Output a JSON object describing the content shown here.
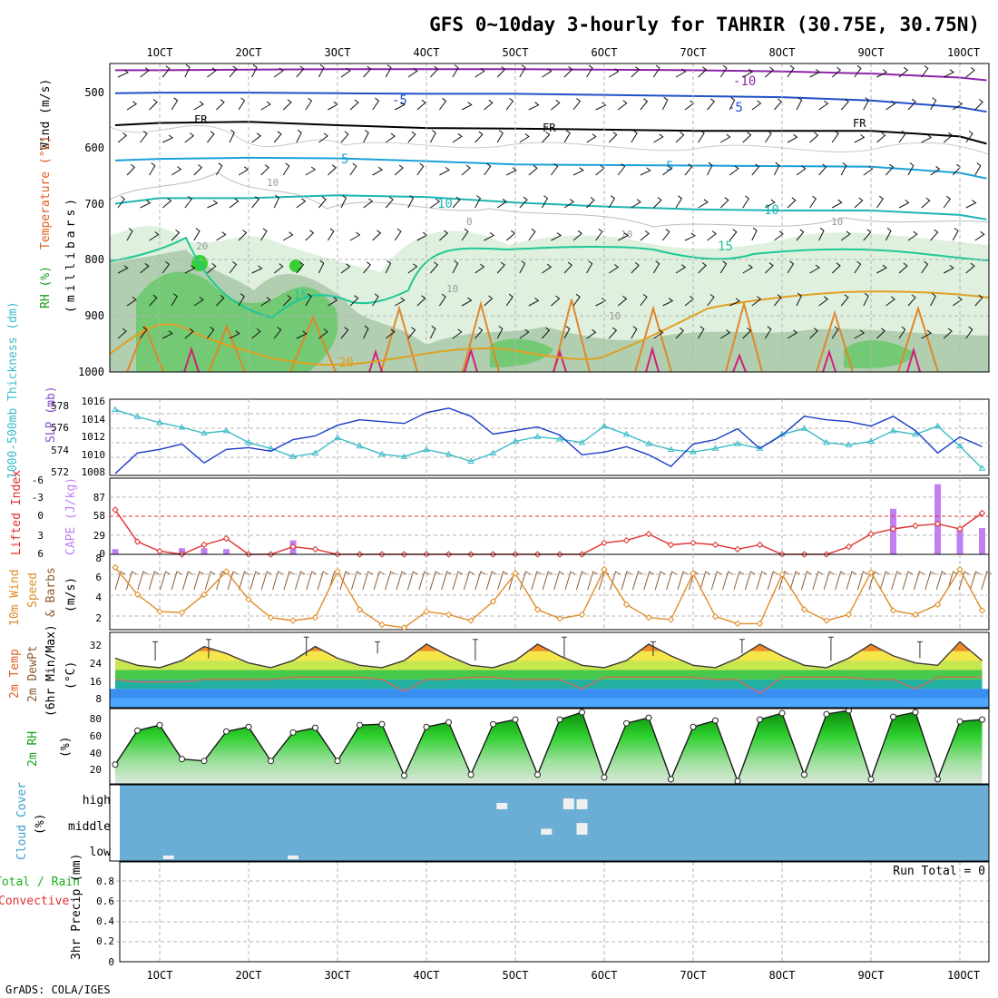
{
  "title": "GFS 0~10day 3-hourly for TAHRIR (30.75E, 30.75N)",
  "footer": "GrADS: COLA/IGES",
  "run_total": "Run Total = 0",
  "time_labels": [
    "1OCT",
    "2OCT",
    "3OCT",
    "4OCT",
    "5OCT",
    "6OCT",
    "7OCT",
    "8OCT",
    "9OCT",
    "10OCT"
  ],
  "colors": {
    "grid": "#b4b4b4",
    "thickness": "#3cbcc8",
    "slp": "#1e3cc8",
    "lifted_index": "#e03030",
    "cape": "#c080f0",
    "wind": "#e08c28",
    "barb": "#8c5a32",
    "temp": "#444444",
    "dewpt": "#d0705a",
    "rh": "#18b018",
    "cloud_bg": "#6aaed6",
    "cloud_patch": "#f0f0f0"
  },
  "panels": {
    "upper": {
      "ylabel": [
        "Wind (m/s)",
        "Temperature (°C)",
        "RH (%)"
      ],
      "axis_note": "(millibars)",
      "yticks": [
        "500",
        "600",
        "700",
        "800",
        "900",
        "1000"
      ],
      "contour_labels": [
        "-10",
        "-5",
        "-5",
        "FR",
        "FR",
        "FR",
        "5",
        "5",
        "10",
        "10",
        "15",
        "15",
        "20",
        "10",
        "10",
        "10",
        "0",
        "10",
        "10",
        "20"
      ]
    },
    "pressure": {
      "ylabel_thk": "1000-500mb Thickness (dm)",
      "ylabel_slp": "SLP (mb)",
      "thk_ticks": [
        "578",
        "576",
        "574",
        "572"
      ],
      "slp_ticks": [
        "1016",
        "1014",
        "1012",
        "1010",
        "1008"
      ]
    },
    "cape": {
      "ylabel_li": "Lifted Index",
      "ylabel_cape": "CAPE (J/kg)",
      "li_ticks": [
        "-6",
        "-3",
        "0",
        "3",
        "6"
      ],
      "cape_ticks": [
        "87",
        "58",
        "29",
        "0"
      ]
    },
    "wind": {
      "ylabel": [
        "10m Wind",
        "Speed",
        "& Barbs",
        "(m/s)"
      ],
      "yticks": [
        "8",
        "6",
        "4",
        "2"
      ]
    },
    "temp": {
      "ylabel": [
        "2m Temp",
        "2m DewPt",
        "(6hr Min/Max)",
        "(°C)"
      ],
      "yticks": [
        "32",
        "24",
        "16",
        "8"
      ]
    },
    "rh": {
      "ylabel": [
        "2m RH",
        "(%)"
      ],
      "yticks": [
        "80",
        "60",
        "40",
        "20"
      ]
    },
    "cloud": {
      "ylabel": [
        "Cloud Cover",
        "(%)"
      ],
      "yticks": [
        "high",
        "middle",
        "low"
      ]
    },
    "precip": {
      "ylabel_left": [
        "Total / Rain",
        "Convective"
      ],
      "ylabel": "3hr Precip (mm)",
      "yticks": [
        "0.8",
        "0.6",
        "0.4",
        "0.2",
        "0"
      ]
    }
  },
  "chart_data": [
    {
      "type": "line",
      "name": "upper-air-temperature-contours",
      "xlabel": "",
      "ylabel": "millibars",
      "ylim": [
        1000,
        450
      ],
      "x_days": [
        0.5,
        1,
        2,
        3,
        4,
        5,
        6,
        7,
        8,
        9,
        10,
        10.3
      ],
      "series": [
        {
          "name": "-10",
          "values": [
            462,
            462,
            461,
            460,
            460,
            460,
            461,
            462,
            464,
            468,
            475,
            480
          ]
        },
        {
          "name": "-5",
          "values": [
            503,
            502,
            502,
            503,
            504,
            504,
            506,
            508,
            510,
            516,
            528,
            536
          ]
        },
        {
          "name": "FR",
          "values": [
            560,
            556,
            554,
            560,
            565,
            566,
            568,
            570,
            570,
            570,
            580,
            593
          ]
        },
        {
          "name": "5",
          "values": [
            623,
            620,
            618,
            619,
            624,
            630,
            631,
            632,
            633,
            634,
            645,
            655
          ]
        },
        {
          "name": "10",
          "values": [
            700,
            690,
            690,
            685,
            688,
            698,
            705,
            710,
            712,
            712,
            720,
            728
          ]
        }
      ]
    },
    {
      "type": "line",
      "name": "thickness-and-slp",
      "x_days": [
        0.5,
        0.75,
        1,
        1.25,
        1.5,
        1.75,
        2,
        2.25,
        2.5,
        2.75,
        3,
        3.25,
        3.5,
        3.75,
        4,
        4.25,
        4.5,
        4.75,
        5,
        5.25,
        5.5,
        5.75,
        6,
        6.25,
        6.5,
        6.75,
        7,
        7.25,
        7.5,
        7.75,
        8,
        8.25,
        8.5,
        8.75,
        9,
        9.25,
        9.5,
        9.75,
        10,
        10.25
      ],
      "series": [
        {
          "name": "1000-500mb Thickness (dm)",
          "values": [
            577.6,
            577.0,
            576.5,
            576.1,
            575.6,
            575.8,
            574.8,
            574.3,
            573.6,
            573.9,
            575.2,
            574.5,
            573.8,
            573.6,
            574.2,
            573.8,
            573.2,
            573.9,
            574.9,
            575.3,
            575.1,
            574.8,
            576.2,
            575.5,
            574.7,
            574.2,
            574.0,
            574.3,
            574.7,
            574.3,
            575.5,
            576.0,
            574.8,
            574.6,
            574.9,
            575.8,
            575.5,
            576.2,
            574.5,
            572.6
          ]
        },
        {
          "name": "SLP (mb)",
          "values": [
            1008.2,
            1010.5,
            1010.9,
            1011.5,
            1009.4,
            1010.9,
            1011.1,
            1010.7,
            1012.0,
            1012.4,
            1013.6,
            1014.2,
            1014.0,
            1013.8,
            1015.0,
            1015.5,
            1014.6,
            1012.6,
            1013.0,
            1013.4,
            1012.5,
            1010.3,
            1010.6,
            1011.2,
            1010.3,
            1009.0,
            1011.5,
            1012.0,
            1013.2,
            1011.0,
            1012.5,
            1014.6,
            1014.2,
            1014.0,
            1013.5,
            1014.6,
            1013.0,
            1010.5,
            1012.3,
            1011.2
          ]
        }
      ],
      "ylim_thk": [
        572,
        578.5
      ],
      "ylim_slp": [
        1008,
        1016.5
      ]
    },
    {
      "type": "bar",
      "name": "lifted-index-and-cape",
      "x_days": [
        0.5,
        0.75,
        1,
        1.25,
        1.5,
        1.75,
        2,
        2.25,
        2.5,
        2.75,
        3,
        3.25,
        3.5,
        3.75,
        4,
        4.25,
        4.5,
        4.75,
        5,
        5.25,
        5.5,
        5.75,
        6,
        6.25,
        6.5,
        6.75,
        7,
        7.25,
        7.5,
        7.75,
        8,
        8.25,
        8.5,
        8.75,
        9,
        9.25,
        9.5,
        9.75,
        10,
        10.25
      ],
      "series": [
        {
          "name": "Lifted Index",
          "values": [
            -1.0,
            4.0,
            5.5,
            6.0,
            4.5,
            3.5,
            6.0,
            6.0,
            4.8,
            5.2,
            6.0,
            6.0,
            6.0,
            6.0,
            6.0,
            6.0,
            6.0,
            6.0,
            6.0,
            6.0,
            6.0,
            6.0,
            4.2,
            3.8,
            2.8,
            4.5,
            4.2,
            4.5,
            5.2,
            4.5,
            6.0,
            6.0,
            6.0,
            4.8,
            2.8,
            2.0,
            1.5,
            1.2,
            2.0,
            -0.5
          ]
        },
        {
          "name": "CAPE (J/kg)",
          "values": [
            6,
            0,
            0,
            7,
            7,
            6,
            0,
            0,
            16,
            0,
            0,
            0,
            0,
            0,
            0,
            0,
            0,
            0,
            0,
            0,
            0,
            0,
            0,
            0,
            0,
            0,
            0,
            0,
            0,
            0,
            0,
            0,
            0,
            0,
            0,
            52,
            0,
            80,
            28,
            30
          ]
        }
      ],
      "ylim_li": [
        6,
        -6
      ],
      "ylim_cape": [
        0,
        87
      ]
    },
    {
      "type": "line",
      "name": "10m-wind-speed",
      "xlabel": "",
      "ylabel": "m/s",
      "ylim": [
        1,
        8.5
      ],
      "x_days": [
        0.5,
        0.75,
        1,
        1.25,
        1.5,
        1.75,
        2,
        2.25,
        2.5,
        2.75,
        3,
        3.25,
        3.5,
        3.75,
        4,
        4.25,
        4.5,
        4.75,
        5,
        5.25,
        5.5,
        5.75,
        6,
        6.25,
        6.5,
        6.75,
        7,
        7.25,
        7.5,
        7.75,
        8,
        8.25,
        8.5,
        8.75,
        9,
        9.25,
        9.5,
        9.75,
        10,
        10.25
      ],
      "series": [
        {
          "name": "10m Wind Speed",
          "values": [
            7.2,
            4.5,
            2.8,
            2.7,
            4.5,
            6.8,
            4.0,
            2.2,
            1.9,
            2.2,
            6.8,
            3.0,
            1.5,
            1.2,
            2.8,
            2.5,
            1.9,
            3.8,
            6.6,
            3.0,
            2.1,
            2.5,
            7.0,
            3.5,
            2.2,
            2.0,
            6.6,
            2.3,
            1.6,
            1.6,
            6.5,
            3.0,
            1.9,
            2.5,
            6.7,
            2.9,
            2.5,
            3.5,
            7.0,
            2.9
          ]
        }
      ]
    },
    {
      "type": "area",
      "name": "2m-temperature-dewpoint",
      "xlabel": "",
      "ylabel": "°C",
      "ylim": [
        4,
        36
      ],
      "x_days": [
        0.5,
        0.75,
        1,
        1.25,
        1.5,
        1.75,
        2,
        2.25,
        2.5,
        2.75,
        3,
        3.25,
        3.5,
        3.75,
        4,
        4.25,
        4.5,
        4.75,
        5,
        5.25,
        5.5,
        5.75,
        6,
        6.25,
        6.5,
        6.75,
        7,
        7.25,
        7.5,
        7.75,
        8,
        8.25,
        8.5,
        8.75,
        9,
        9.25,
        9.5,
        9.75,
        10,
        10.25
      ],
      "series": [
        {
          "name": "2m Temp",
          "values": [
            25,
            22,
            21,
            24,
            30,
            27,
            23,
            21,
            24,
            30,
            25,
            22,
            21,
            24,
            31,
            26,
            22,
            21,
            24,
            31,
            26,
            22,
            21,
            24,
            31,
            26,
            22,
            21,
            25,
            31,
            26,
            22,
            21,
            25,
            31,
            26,
            23,
            22,
            32,
            24
          ]
        },
        {
          "name": "2m DewPt",
          "values": [
            16,
            15,
            15,
            15,
            16,
            16,
            16,
            16,
            17,
            17,
            17,
            17,
            16,
            11,
            16,
            16,
            17,
            17,
            16,
            16,
            16,
            12,
            17,
            17,
            17,
            17,
            17,
            16,
            16,
            10,
            17,
            17,
            17,
            17,
            16,
            16,
            12,
            17,
            17,
            17
          ]
        }
      ]
    },
    {
      "type": "area",
      "name": "2m-relative-humidity",
      "xlabel": "",
      "ylabel": "%",
      "ylim": [
        10,
        92
      ],
      "x_days": [
        0.5,
        0.75,
        1,
        1.25,
        1.5,
        1.75,
        2,
        2.25,
        2.5,
        2.75,
        3,
        3.25,
        3.5,
        3.75,
        4,
        4.25,
        4.5,
        4.75,
        5,
        5.25,
        5.5,
        5.75,
        6,
        6.25,
        6.5,
        6.75,
        7,
        7.25,
        7.5,
        7.75,
        8,
        8.25,
        8.5,
        8.75,
        9,
        9.25,
        9.5,
        9.75,
        10,
        10.25
      ],
      "series": [
        {
          "name": "2m RH",
          "values": [
            31,
            68,
            74,
            37,
            35,
            67,
            72,
            35,
            66,
            71,
            35,
            74,
            75,
            19,
            72,
            77,
            20,
            75,
            80,
            20,
            80,
            88,
            17,
            76,
            82,
            15,
            72,
            79,
            13,
            80,
            87,
            20,
            86,
            90,
            15,
            83,
            88,
            15,
            78,
            80
          ]
        }
      ]
    },
    {
      "type": "heatmap",
      "name": "cloud-cover",
      "layers": [
        "high",
        "middle",
        "low"
      ],
      "cells": [
        {
          "layer": "low",
          "day": 1.1,
          "value": 40
        },
        {
          "layer": "low",
          "day": 2.5,
          "value": 40
        },
        {
          "layer": "high",
          "day": 4.85,
          "value": 40
        },
        {
          "layer": "middle",
          "day": 5.35,
          "value": 20
        },
        {
          "layer": "high",
          "day": 5.6,
          "value": 100
        },
        {
          "layer": "high",
          "day": 5.75,
          "value": 90
        },
        {
          "layer": "middle",
          "day": 5.75,
          "value": 80
        }
      ]
    },
    {
      "type": "bar",
      "name": "3hr-precipitation",
      "xlabel": "",
      "ylabel": "3hr Precip (mm)",
      "ylim": [
        0,
        1
      ],
      "series": [
        {
          "name": "3hr Precip",
          "values": [
            0,
            0,
            0,
            0,
            0,
            0,
            0,
            0,
            0,
            0
          ]
        }
      ]
    }
  ]
}
